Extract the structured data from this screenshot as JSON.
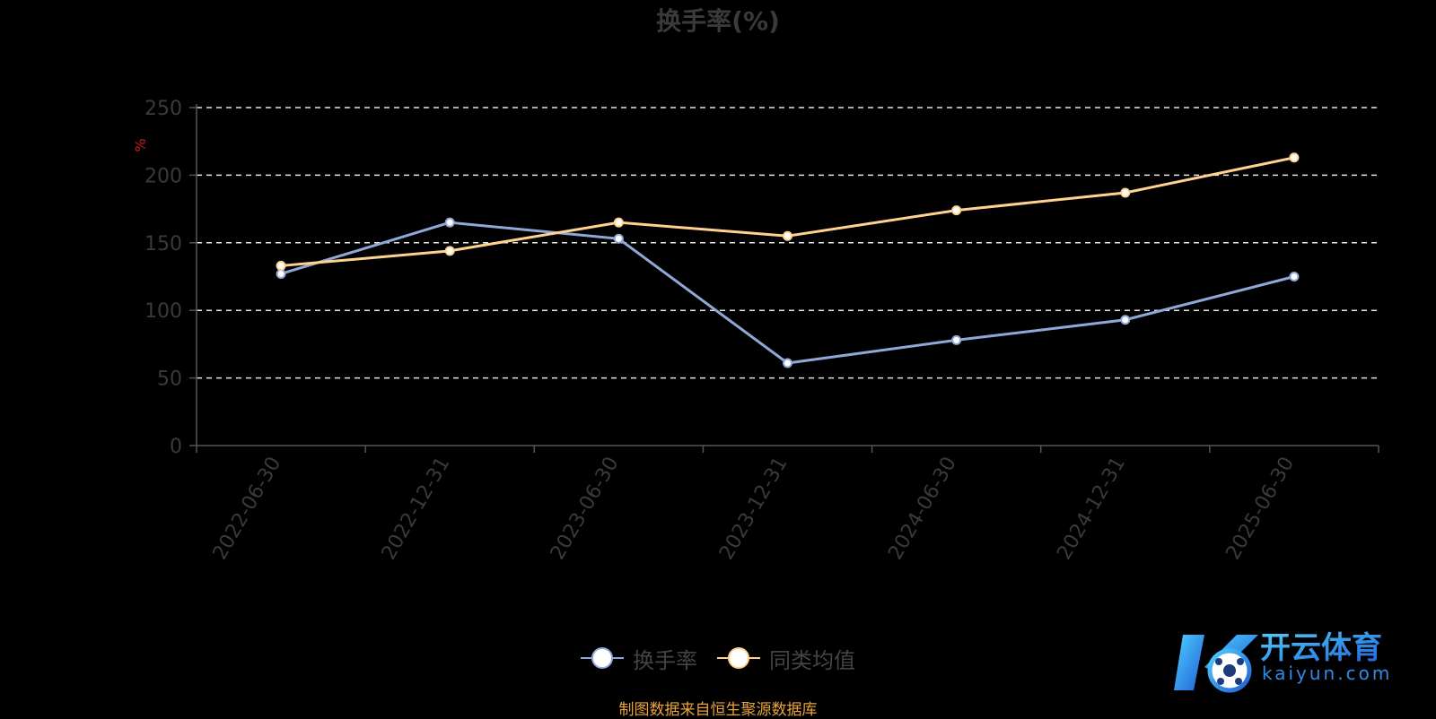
{
  "chart_data": {
    "type": "line",
    "title": "换手率(%)",
    "ylabel": "%",
    "categories": [
      "2022-06-30",
      "2022-12-31",
      "2023-06-30",
      "2023-12-31",
      "2024-06-30",
      "2024-12-31",
      "2025-06-30"
    ],
    "ylim": [
      0,
      250
    ],
    "yticks": [
      0,
      50,
      100,
      150,
      200,
      250
    ],
    "grid": true,
    "legend_position": "bottom-center",
    "series": [
      {
        "name": "换手率",
        "color": "#8fa8d8",
        "values": [
          127,
          165,
          153,
          61,
          78,
          93,
          125
        ]
      },
      {
        "name": "同类均值",
        "color": "#ffd38e",
        "values": [
          133,
          144,
          165,
          155,
          174,
          187,
          213
        ]
      }
    ]
  },
  "footer": {
    "source": "制图数据来自恒生聚源数据库"
  },
  "watermark": {
    "brand": "开云体育",
    "domain": "kaiyun.com",
    "icon": "soccer-ball-k-logo"
  }
}
